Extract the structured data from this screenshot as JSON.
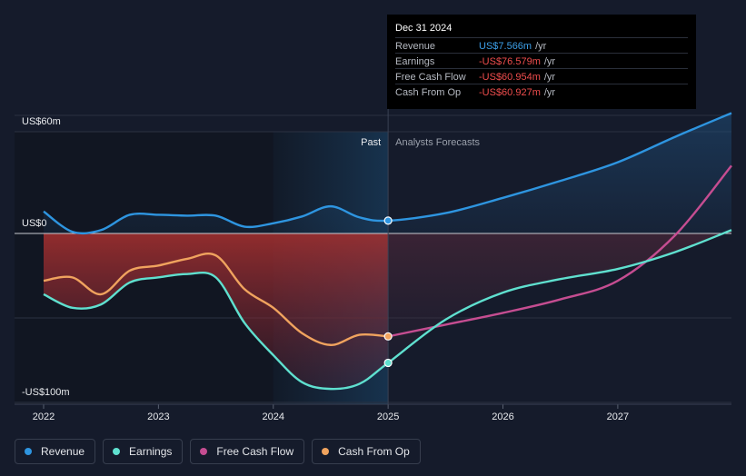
{
  "chart_data": {
    "type": "line",
    "y_unit": "US$",
    "y_axis_labels": [
      "US$60m",
      "US$0",
      "-US$100m"
    ],
    "ylim": [
      -100,
      60
    ],
    "x_ticks": [
      "2022",
      "2023",
      "2024",
      "2025",
      "2026",
      "2027"
    ],
    "xlim": [
      2022.0,
      2027.99
    ],
    "past_label": "Past",
    "forecast_label": "Analysts Forecasts",
    "divider_x": 2025.0,
    "series": [
      {
        "name": "Revenue",
        "color": "#2e95e0",
        "x": [
          2022.0,
          2022.25,
          2022.5,
          2022.75,
          2023.0,
          2023.25,
          2023.5,
          2023.75,
          2024.0,
          2024.25,
          2024.5,
          2024.75,
          2025.0,
          2025.5,
          2026.0,
          2026.5,
          2027.0,
          2027.5,
          2027.99
        ],
        "y": [
          13,
          1,
          2,
          11,
          11,
          10.5,
          10.5,
          4,
          6,
          10,
          16,
          9.5,
          7.566,
          12,
          21,
          31,
          42,
          57,
          71
        ]
      },
      {
        "name": "Earnings",
        "color": "#5fe0cf",
        "x": [
          2022.0,
          2022.25,
          2022.5,
          2022.75,
          2023.0,
          2023.25,
          2023.5,
          2023.75,
          2024.0,
          2024.25,
          2024.5,
          2024.75,
          2025.0,
          2025.5,
          2026.0,
          2026.5,
          2027.0,
          2027.5,
          2027.99
        ],
        "y": [
          -36,
          -44,
          -42,
          -29,
          -26,
          -24,
          -26,
          -53,
          -72,
          -88,
          -92,
          -89,
          -76.579,
          -51,
          -35,
          -27,
          -21,
          -11,
          2
        ]
      },
      {
        "name": "Free Cash Flow",
        "color": "#c54d91",
        "x": [
          2025.0,
          2025.5,
          2026.0,
          2026.5,
          2027.0,
          2027.5,
          2027.99
        ],
        "y": [
          -60.954,
          -54,
          -47,
          -39,
          -28,
          -1,
          40
        ]
      },
      {
        "name": "Cash From Op",
        "color": "#f0a35e",
        "x": [
          2022.0,
          2022.25,
          2022.5,
          2022.75,
          2023.0,
          2023.25,
          2023.5,
          2023.75,
          2024.0,
          2024.25,
          2024.5,
          2024.75,
          2025.0
        ],
        "y": [
          -28,
          -26,
          -36,
          -22,
          -19,
          -15,
          -13,
          -33,
          -44,
          -59,
          -66,
          -60,
          -60.927
        ]
      }
    ],
    "tooltip": {
      "date": "Dec 31 2024",
      "unit": "/yr",
      "rows": [
        {
          "label": "Revenue",
          "value": "US$7.566m",
          "color": "#3c9fe8"
        },
        {
          "label": "Earnings",
          "value": "-US$76.579m",
          "color": "#ef4d4d"
        },
        {
          "label": "Free Cash Flow",
          "value": "-US$60.954m",
          "color": "#ef4d4d"
        },
        {
          "label": "Cash From Op",
          "value": "-US$60.927m",
          "color": "#ef4d4d"
        }
      ]
    }
  },
  "legend": [
    {
      "label": "Revenue",
      "color": "#2e95e0"
    },
    {
      "label": "Earnings",
      "color": "#5fe0cf"
    },
    {
      "label": "Free Cash Flow",
      "color": "#c54d91"
    },
    {
      "label": "Cash From Op",
      "color": "#f0a35e"
    }
  ]
}
